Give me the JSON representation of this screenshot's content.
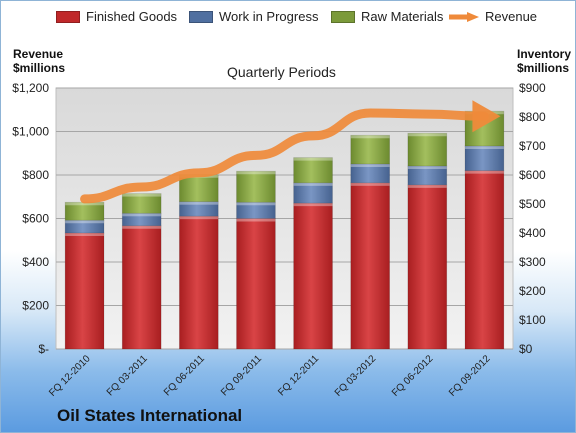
{
  "company": "Oil States International",
  "chart_data": {
    "type": "bar",
    "stacked": true,
    "title": "Quarterly Periods",
    "categories": [
      "FQ 12-2010",
      "FQ 03-2011",
      "FQ 06-2011",
      "FQ 09-2011",
      "FQ 12-2011",
      "FQ 03-2012",
      "FQ 06-2012",
      "FQ 09-2012"
    ],
    "left_axis": {
      "label_line1": "Revenue",
      "label_line2": "$millions",
      "range": [
        0,
        1200
      ],
      "ticks": [
        0,
        200,
        400,
        600,
        800,
        1000,
        1200
      ],
      "tick_labels": [
        "$-",
        "$200",
        "$400",
        "$600",
        "$800",
        "$1,000",
        "$1,200"
      ]
    },
    "right_axis": {
      "label_line1": "Inventory",
      "label_line2": "$millions",
      "range": [
        0,
        900
      ],
      "ticks": [
        0,
        100,
        200,
        300,
        400,
        500,
        600,
        700,
        800,
        900
      ],
      "tick_labels": [
        "$0",
        "$100",
        "$200",
        "$300",
        "$400",
        "$500",
        "$600",
        "$700",
        "$800",
        "$900"
      ]
    },
    "series": [
      {
        "name": "Finished Goods",
        "axis": "right",
        "color": "#c0282a",
        "values": [
          400,
          425,
          458,
          450,
          503,
          573,
          566,
          615
        ]
      },
      {
        "name": "Work in Progress",
        "axis": "right",
        "color": "#4f6fa0",
        "values": [
          44,
          43,
          50,
          56,
          70,
          65,
          65,
          85
        ]
      },
      {
        "name": "Raw Materials",
        "axis": "right",
        "color": "#7b9a3a",
        "values": [
          62,
          68,
          93,
          107,
          87,
          99,
          113,
          120
        ]
      },
      {
        "name": "Revenue",
        "axis": "left",
        "type": "line",
        "color": "#ef8a3a",
        "values": [
          690,
          745,
          810,
          890,
          980,
          1085,
          1080,
          1070
        ]
      }
    ],
    "legend_position": "top",
    "grid": true
  }
}
